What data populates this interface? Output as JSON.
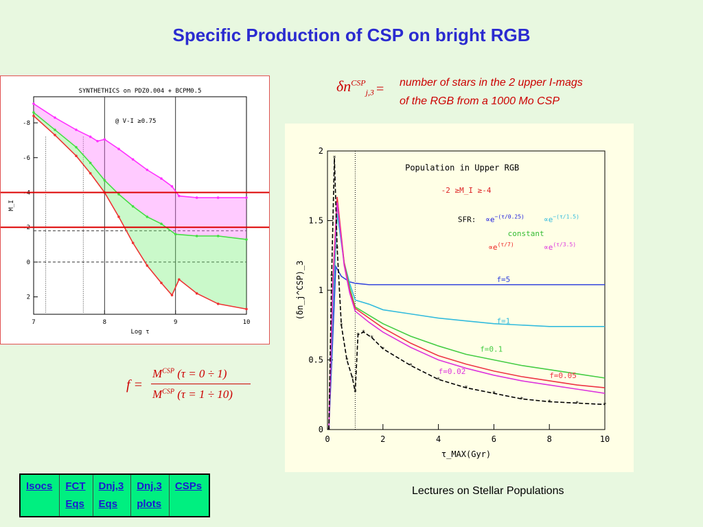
{
  "slide": {
    "title": "Specific Production of CSP on bright RGB",
    "footer": "Lectures on Stellar Populations"
  },
  "definition": {
    "symbol": "δn",
    "sup": "CSP",
    "sub": "j,3",
    "equals": "=",
    "line1": "number of stars in the 2 upper I-mags",
    "line2": "of the RGB from a 1000 Mo CSP"
  },
  "formula": {
    "lhs": "f =",
    "num_m": "M",
    "num_sup": "CSP",
    "num_rest": " (τ = 0 ÷ 1)",
    "den_m": "M",
    "den_sup": "CSP",
    "den_rest": " (τ = 1 ÷ 10)"
  },
  "nav": {
    "links": [
      {
        "lines": [
          "Isocs"
        ]
      },
      {
        "lines": [
          "FCT",
          "Eqs"
        ]
      },
      {
        "lines": [
          "Dnj,3",
          "Eqs"
        ]
      },
      {
        "lines": [
          "Dnj,3",
          "plots"
        ]
      },
      {
        "lines": [
          "CSPs"
        ]
      }
    ]
  },
  "chart_data": [
    {
      "type": "area",
      "title": "SYNTHETHICS on PDZ0.004 + BCPM0.5",
      "annotation": "@ V-I ≥0.75",
      "xlabel": "Log τ",
      "ylabel": "M_I",
      "xlim": [
        7,
        10
      ],
      "ylim": [
        3,
        -9.5
      ],
      "y_inverted": true,
      "xticks": [
        7,
        8,
        9,
        10
      ],
      "yticks": [
        -8,
        -6,
        -4,
        -2,
        0,
        2
      ],
      "hlines_red": [
        -4,
        -2
      ],
      "hlines_dashed": [
        -1.8,
        0
      ],
      "vlines_solid": [
        8,
        9
      ],
      "vlines_dotted": [
        7.17,
        7.7
      ],
      "series": [
        {
          "color": "#ff33ff",
          "x": [
            7.0,
            7.3,
            7.6,
            7.8,
            7.9,
            8.0,
            8.2,
            8.4,
            8.6,
            8.8,
            8.95,
            9.05,
            9.3,
            9.6,
            10.0
          ],
          "y": [
            -9.1,
            -8.3,
            -7.6,
            -7.2,
            -6.95,
            -7.05,
            -6.5,
            -5.9,
            -5.3,
            -4.8,
            -4.35,
            -3.8,
            -3.7,
            -3.7,
            -3.7
          ]
        },
        {
          "color": "#44dd44",
          "x": [
            7.0,
            7.3,
            7.6,
            7.8,
            8.0,
            8.2,
            8.4,
            8.6,
            8.8,
            9.0,
            9.3,
            9.6,
            10.0
          ],
          "y": [
            -8.6,
            -7.6,
            -6.6,
            -5.7,
            -4.7,
            -3.9,
            -3.2,
            -2.6,
            -2.2,
            -1.6,
            -1.5,
            -1.5,
            -1.3
          ]
        },
        {
          "color": "#ee3333",
          "x": [
            7.0,
            7.3,
            7.6,
            7.8,
            8.0,
            8.2,
            8.4,
            8.6,
            8.8,
            8.95,
            9.05,
            9.3,
            9.6,
            10.0
          ],
          "y": [
            -8.4,
            -7.3,
            -6.1,
            -5.1,
            -4.0,
            -2.6,
            -1.1,
            0.2,
            1.2,
            1.9,
            1.0,
            1.8,
            2.4,
            2.7
          ]
        }
      ]
    },
    {
      "type": "line",
      "title": "Population in Upper RGB",
      "subtitle": "-2 ≥M_I ≥-4",
      "xlabel": "τ_MAX(Gyr)",
      "ylabel": "(δn_j^CSP)_3",
      "xlim": [
        0,
        10
      ],
      "ylim": [
        0,
        2
      ],
      "xticks": [
        0,
        2,
        4,
        6,
        8,
        10
      ],
      "yticks": [
        0,
        0.5,
        1,
        1.5,
        2
      ],
      "vline_dotted": 1,
      "legend": {
        "sfr_label": "SFR:",
        "entries": [
          {
            "text": "∝e",
            "sup": "−(τ/0.25)",
            "color": "#2222dd"
          },
          {
            "text": "∝e",
            "sup": "−(τ/1.5)",
            "color": "#33bbdd"
          },
          {
            "text": "constant",
            "color": "#33bb33"
          },
          {
            "text": "∝e",
            "sup": "(τ/7)",
            "color": "#ee2222"
          },
          {
            "text": "∝e",
            "sup": "(τ/3.5)",
            "color": "#dd33dd"
          }
        ]
      },
      "series": [
        {
          "name": "f=5",
          "color": "#3344dd",
          "x": [
            0.05,
            0.2,
            0.3,
            0.5,
            0.8,
            1.0,
            1.5,
            2,
            4,
            6,
            8,
            10
          ],
          "y": [
            0,
            0.7,
            1.17,
            1.1,
            1.06,
            1.05,
            1.04,
            1.04,
            1.04,
            1.04,
            1.04,
            1.04
          ]
        },
        {
          "name": "f=1",
          "color": "#33bbdd",
          "x": [
            0.05,
            0.2,
            0.35,
            0.6,
            0.8,
            1.0,
            1.5,
            2,
            3,
            4,
            5,
            6,
            7,
            8,
            9,
            10
          ],
          "y": [
            0,
            0.9,
            1.55,
            1.2,
            1.05,
            0.93,
            0.9,
            0.86,
            0.83,
            0.8,
            0.78,
            0.76,
            0.75,
            0.74,
            0.74,
            0.74
          ]
        },
        {
          "name": "f=0.1",
          "color": "#44cc44",
          "x": [
            0.05,
            0.2,
            0.35,
            0.6,
            0.8,
            1.0,
            1.5,
            2,
            3,
            4,
            5,
            6,
            7,
            8,
            9,
            10
          ],
          "y": [
            0,
            1.0,
            1.62,
            1.2,
            1.02,
            0.88,
            0.82,
            0.76,
            0.67,
            0.6,
            0.54,
            0.5,
            0.46,
            0.43,
            0.4,
            0.37
          ]
        },
        {
          "name": "f=0.05",
          "color": "#ee3344",
          "x": [
            0.05,
            0.2,
            0.35,
            0.6,
            0.8,
            1.0,
            1.5,
            2,
            3,
            4,
            5,
            6,
            7,
            8,
            9,
            10
          ],
          "y": [
            0,
            1.1,
            1.67,
            1.2,
            1.0,
            0.87,
            0.8,
            0.73,
            0.62,
            0.53,
            0.47,
            0.42,
            0.38,
            0.35,
            0.32,
            0.3
          ]
        },
        {
          "name": "f=0.02",
          "color": "#dd33dd",
          "x": [
            0.05,
            0.2,
            0.35,
            0.6,
            0.8,
            1.0,
            1.5,
            2,
            3,
            4,
            5,
            6,
            7,
            8,
            9,
            10
          ],
          "y": [
            0,
            1.05,
            1.63,
            1.18,
            0.98,
            0.85,
            0.77,
            0.7,
            0.59,
            0.5,
            0.44,
            0.39,
            0.35,
            0.32,
            0.29,
            0.26
          ]
        },
        {
          "name": "",
          "color": "#000000",
          "dashed": true,
          "x": [
            0.05,
            0.15,
            0.25,
            0.35,
            0.5,
            0.7,
            0.9,
            1.0,
            1.1,
            1.3,
            1.6,
            2,
            3,
            4,
            5,
            6,
            7,
            8,
            9,
            10
          ],
          "y": [
            0,
            1.1,
            1.95,
            1.3,
            0.75,
            0.5,
            0.37,
            0.27,
            0.68,
            0.7,
            0.66,
            0.58,
            0.46,
            0.36,
            0.3,
            0.26,
            0.22,
            0.2,
            0.19,
            0.18
          ]
        }
      ]
    }
  ]
}
